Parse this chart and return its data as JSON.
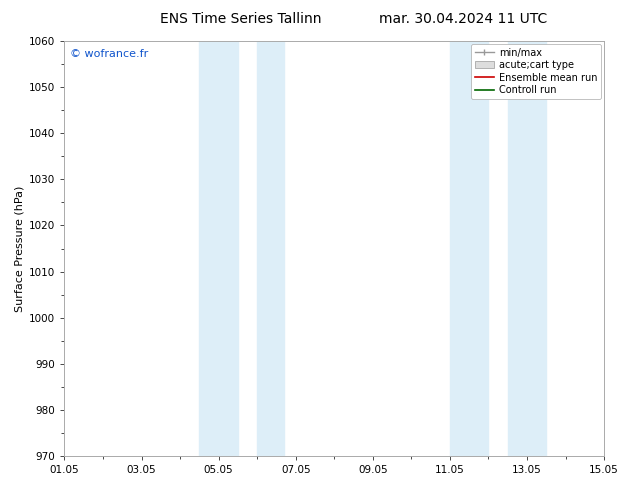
{
  "title_left": "ENS Time Series Tallinn",
  "title_right": "mar. 30.04.2024 11 UTC",
  "ylabel": "Surface Pressure (hPa)",
  "ylim": [
    970,
    1060
  ],
  "yticks": [
    970,
    980,
    990,
    1000,
    1010,
    1020,
    1030,
    1040,
    1050,
    1060
  ],
  "xlim_start": 0,
  "xlim_end": 14,
  "xtick_labels": [
    "01.05",
    "03.05",
    "05.05",
    "07.05",
    "09.05",
    "11.05",
    "13.05",
    "15.05"
  ],
  "xtick_positions": [
    0,
    2,
    4,
    6,
    8,
    10,
    12,
    14
  ],
  "shaded_bands": [
    {
      "xmin": 3.5,
      "xmax": 4.5,
      "color": "#ddeef8"
    },
    {
      "xmin": 5.0,
      "xmax": 5.7,
      "color": "#ddeef8"
    },
    {
      "xmin": 10.0,
      "xmax": 11.0,
      "color": "#ddeef8"
    },
    {
      "xmin": 11.5,
      "xmax": 12.5,
      "color": "#ddeef8"
    }
  ],
  "watermark": "© wofrance.fr",
  "watermark_color": "#1155cc",
  "bg_color": "#ffffff",
  "axes_bg_color": "#ffffff",
  "border_color": "#aaaaaa",
  "title_fontsize": 10,
  "tick_fontsize": 7.5,
  "ylabel_fontsize": 8,
  "legend_fontsize": 7
}
